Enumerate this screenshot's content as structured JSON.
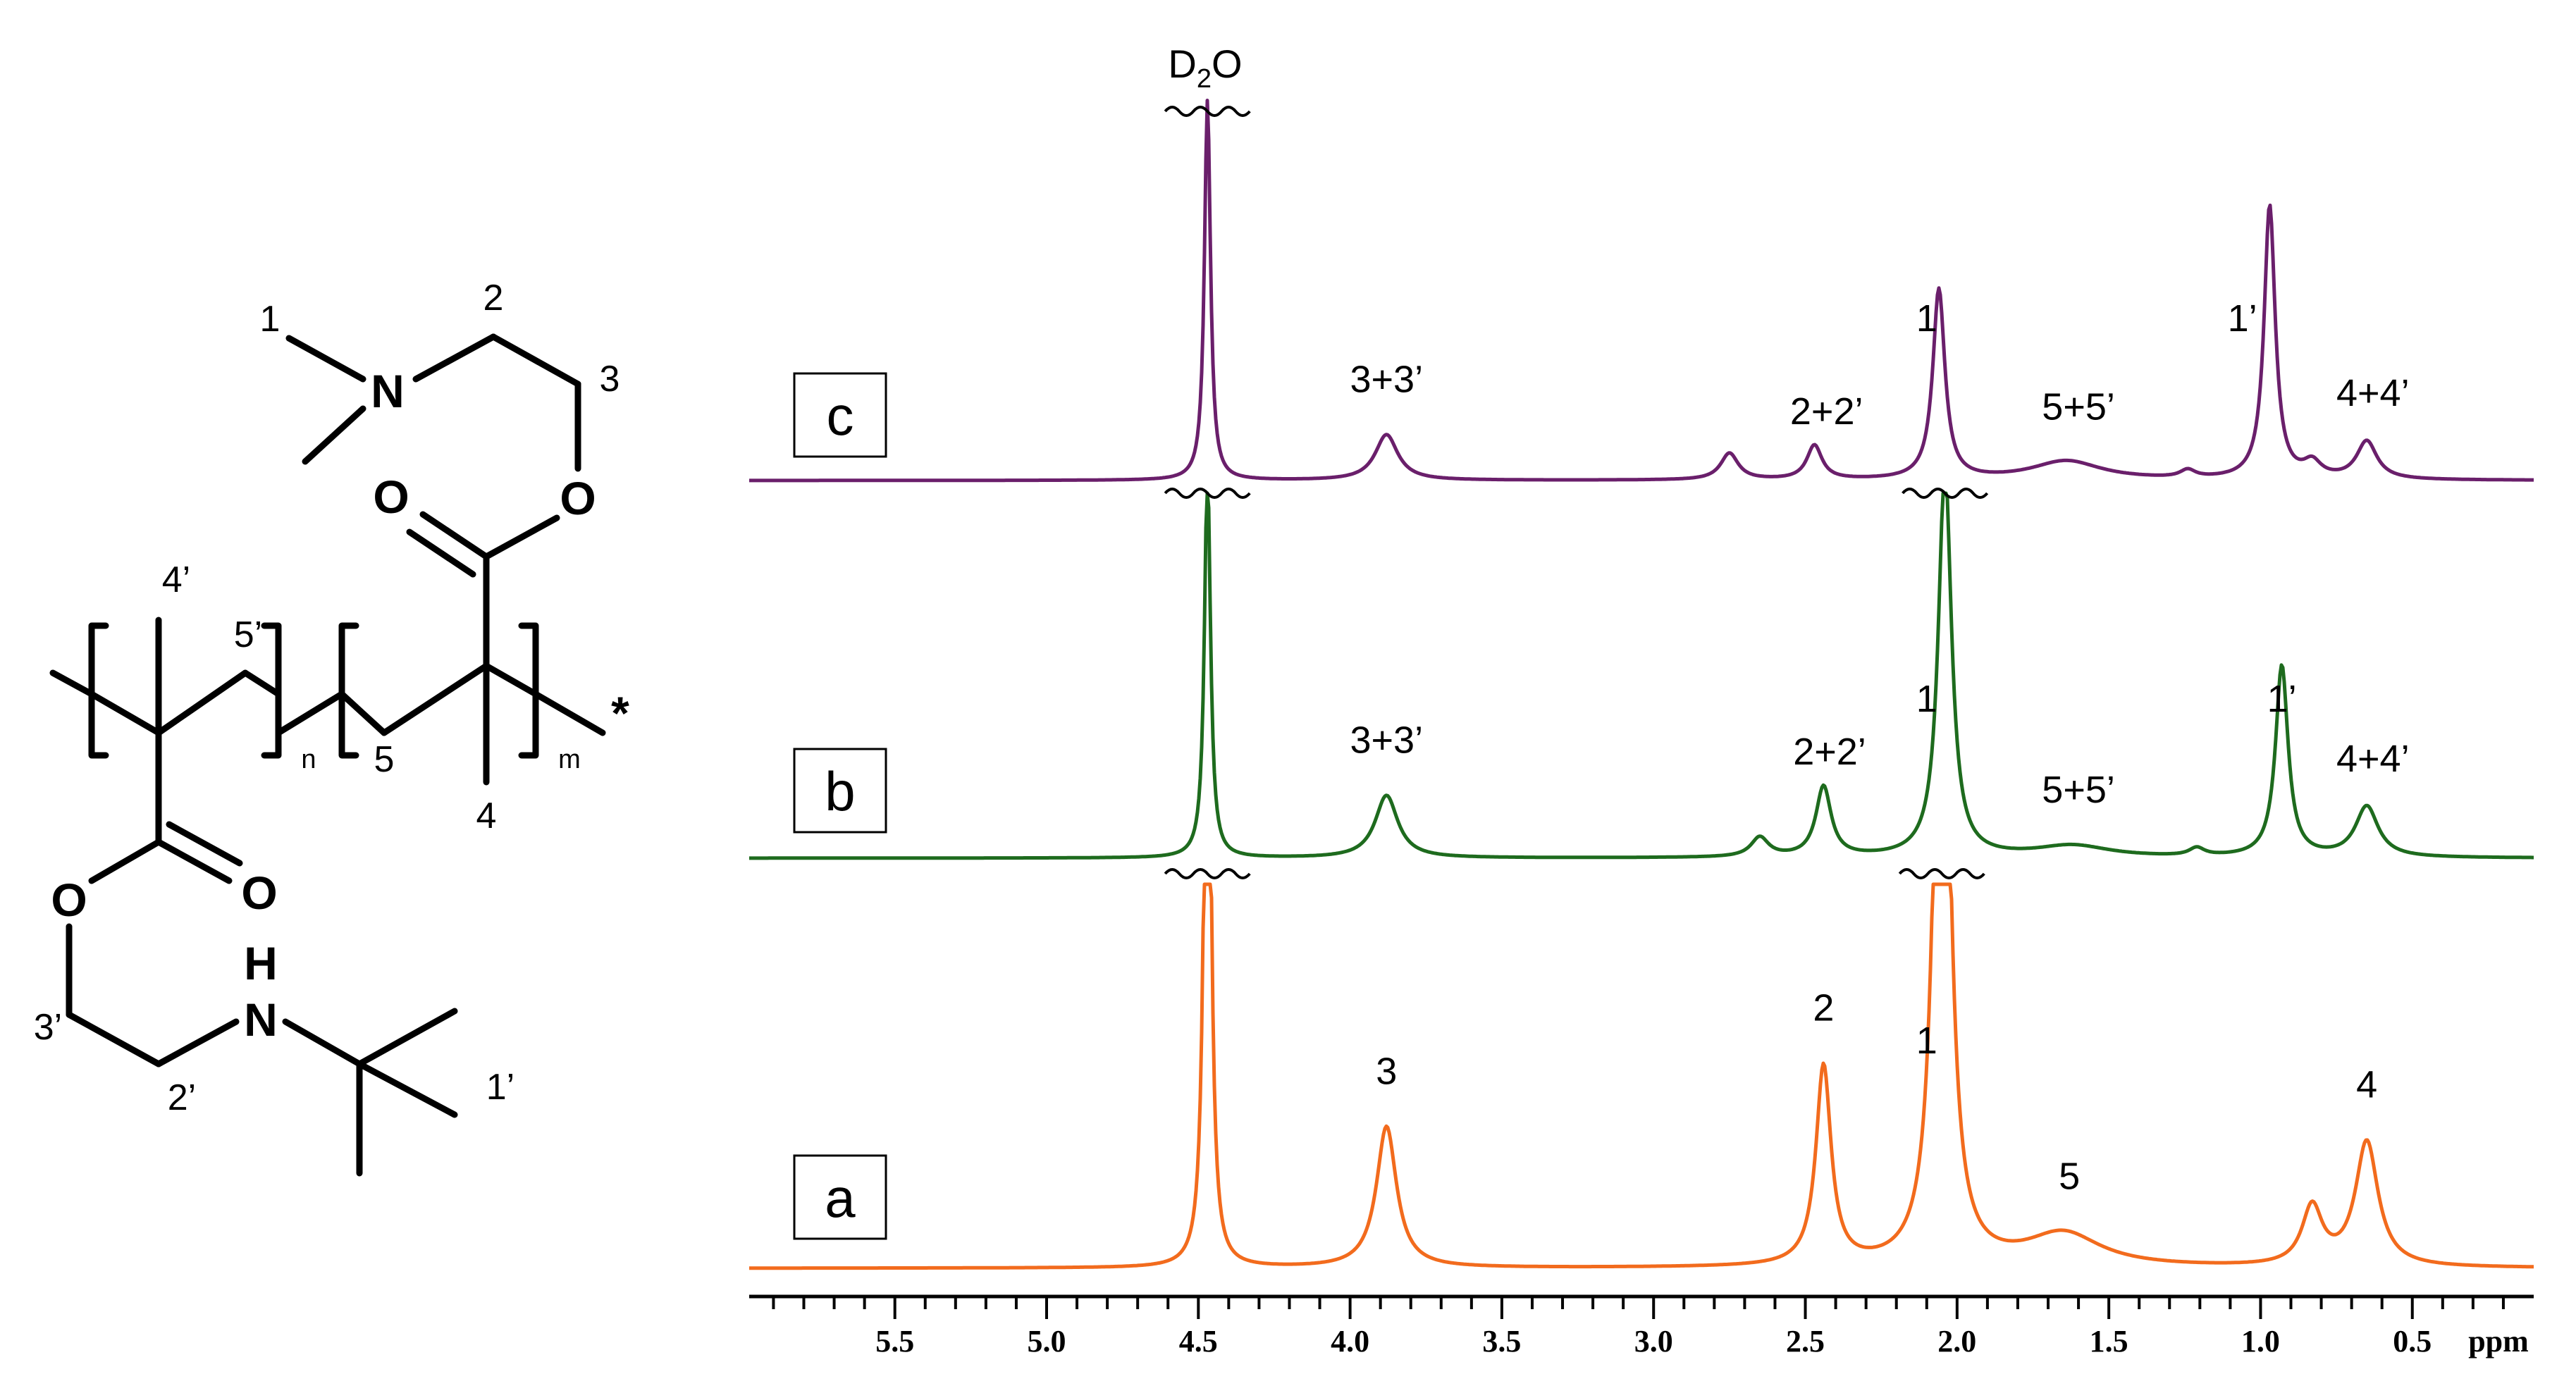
{
  "structure": {
    "atoms": {
      "N_top": "N",
      "O_ester_top": "O",
      "O_carbonyl_top": "O",
      "O_ester_bottom": "O",
      "O_carbonyl_bottom": "O",
      "NH_N": "N",
      "NH_H": "H",
      "end_star": "*"
    },
    "labels": {
      "l1": "1",
      "l2": "2",
      "l3": "3",
      "l4p": "4’",
      "l5p": "5’",
      "l5": "5",
      "l4": "4",
      "l3p": "3’",
      "l2p": "2’",
      "l1p": "1’",
      "n": "n",
      "m": "m"
    }
  },
  "chart_data": {
    "type": "line",
    "title": "",
    "xlabel": "ppm",
    "ylabel": "",
    "xlim": [
      5.98,
      0.1
    ],
    "x_reversed": true,
    "x_ticks": [
      "5.5",
      "5.0",
      "4.5",
      "4.0",
      "3.5",
      "3.0",
      "2.5",
      "2.0",
      "1.5",
      "1.0",
      "0.5"
    ],
    "x_tick_values": [
      5.5,
      5.0,
      4.5,
      4.0,
      3.5,
      3.0,
      2.5,
      2.0,
      1.5,
      1.0,
      0.5
    ],
    "solvent_label": "D₂O",
    "solvent_label_main": "D",
    "solvent_label_sub": "2",
    "solvent_label_tail": "O",
    "colors": {
      "a": "#f26b1d",
      "b": "#1e6b1e",
      "c": "#6a1f6b"
    },
    "series": [
      {
        "name": "a",
        "peaks": [
          {
            "ppm": 4.47,
            "height": 1.0,
            "width": 0.012
          },
          {
            "ppm": 3.88,
            "height": 0.17,
            "width": 0.04
          },
          {
            "ppm": 2.44,
            "height": 0.24,
            "width": 0.03
          },
          {
            "ppm": 2.05,
            "height": 1.0,
            "width": 0.028
          },
          {
            "ppm": 1.65,
            "height": 0.04,
            "width": 0.15
          },
          {
            "ppm": 0.83,
            "height": 0.07,
            "width": 0.04
          },
          {
            "ppm": 0.65,
            "height": 0.15,
            "width": 0.045
          }
        ],
        "annotations": [
          {
            "label": "3",
            "ppm": 3.88
          },
          {
            "label": "2",
            "ppm": 2.44
          },
          {
            "label": "1",
            "ppm": 2.1
          },
          {
            "label": "5",
            "ppm": 1.63
          },
          {
            "label": "4",
            "ppm": 0.65
          }
        ]
      },
      {
        "name": "b",
        "peaks": [
          {
            "ppm": 4.47,
            "height": 1.0,
            "width": 0.012
          },
          {
            "ppm": 3.88,
            "height": 0.16,
            "width": 0.045
          },
          {
            "ppm": 2.65,
            "height": 0.05,
            "width": 0.035
          },
          {
            "ppm": 2.44,
            "height": 0.18,
            "width": 0.03
          },
          {
            "ppm": 2.04,
            "height": 1.0,
            "width": 0.026
          },
          {
            "ppm": 1.62,
            "height": 0.03,
            "width": 0.15
          },
          {
            "ppm": 1.21,
            "height": 0.02,
            "width": 0.03
          },
          {
            "ppm": 0.93,
            "height": 0.49,
            "width": 0.025
          },
          {
            "ppm": 0.65,
            "height": 0.13,
            "width": 0.045
          }
        ],
        "annotations": [
          {
            "label": "3+3’",
            "ppm": 3.88
          },
          {
            "label": "2+2’",
            "ppm": 2.42
          },
          {
            "label": "1",
            "ppm": 2.1
          },
          {
            "label": "5+5’",
            "ppm": 1.6
          },
          {
            "label": "1’",
            "ppm": 0.93
          },
          {
            "label": "4+4’",
            "ppm": 0.63
          }
        ]
      },
      {
        "name": "c",
        "peaks": [
          {
            "ppm": 4.47,
            "height": 1.0,
            "width": 0.012
          },
          {
            "ppm": 3.88,
            "height": 0.12,
            "width": 0.045
          },
          {
            "ppm": 2.75,
            "height": 0.07,
            "width": 0.035
          },
          {
            "ppm": 2.47,
            "height": 0.09,
            "width": 0.03
          },
          {
            "ppm": 2.06,
            "height": 0.5,
            "width": 0.024
          },
          {
            "ppm": 1.64,
            "height": 0.05,
            "width": 0.14
          },
          {
            "ppm": 1.24,
            "height": 0.02,
            "width": 0.03
          },
          {
            "ppm": 0.97,
            "height": 0.72,
            "width": 0.022
          },
          {
            "ppm": 0.83,
            "height": 0.04,
            "width": 0.035
          },
          {
            "ppm": 0.65,
            "height": 0.1,
            "width": 0.04
          }
        ],
        "annotations": [
          {
            "label": "3+3’",
            "ppm": 3.88
          },
          {
            "label": "2+2’",
            "ppm": 2.43
          },
          {
            "label": "1",
            "ppm": 2.1
          },
          {
            "label": "5+5’",
            "ppm": 1.6
          },
          {
            "label": "1’",
            "ppm": 1.06
          },
          {
            "label": "4+4’",
            "ppm": 0.63
          }
        ]
      }
    ]
  }
}
